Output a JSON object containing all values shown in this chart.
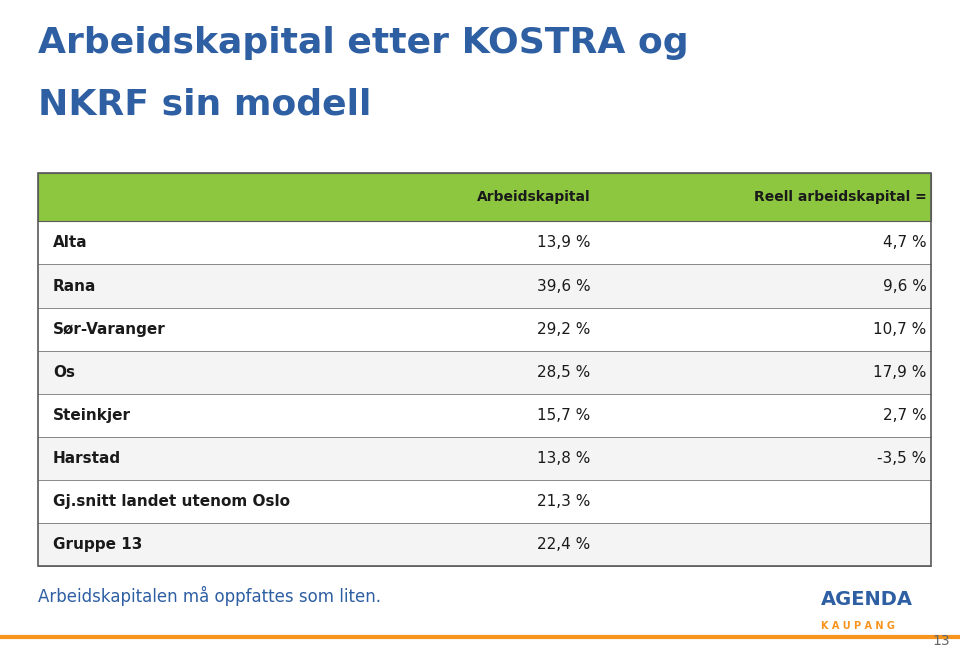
{
  "title_line1": "Arbeidskapital etter KOSTRA og",
  "title_line2": "NKRF sin modell",
  "title_color": "#2E5FA3",
  "background_color": "#FFFFFF",
  "header_bg_color": "#8DC63F",
  "header_text_color": "#1A1A1A",
  "header_col1": "Arbeidskapital",
  "header_col2": "Reell arbeidskapital =",
  "rows": [
    {
      "label": "Alta",
      "col1": "13,9 %",
      "col2": "4,7 %"
    },
    {
      "label": "Rana",
      "col1": "39,6 %",
      "col2": "9,6 %"
    },
    {
      "label": "Sør-Varanger",
      "col1": "29,2 %",
      "col2": "10,7 %"
    },
    {
      "label": "Os",
      "col1": "28,5 %",
      "col2": "17,9 %"
    },
    {
      "label": "Steinkjer",
      "col1": "15,7 %",
      "col2": "2,7 %"
    },
    {
      "label": "Harstad",
      "col1": "13,8 %",
      "col2": "-3,5 %"
    },
    {
      "label": "Gj.snitt landet utenom Oslo",
      "col1": "21,3 %",
      "col2": ""
    },
    {
      "label": "Gruppe 13",
      "col1": "22,4 %",
      "col2": ""
    }
  ],
  "row_text_color": "#1A1A1A",
  "table_border_color": "#5A5A5A",
  "footer_text": "Arbeidskapitalen må oppfattes som liten.",
  "footer_text_color": "#2E5FA3",
  "page_number": "13",
  "orange_line_color": "#F7941D",
  "agenda_top": "AGENDA",
  "agenda_bottom": "K A U P A N G",
  "agenda_color_top": "#2E5FA3",
  "agenda_color_bottom": "#F7941D"
}
